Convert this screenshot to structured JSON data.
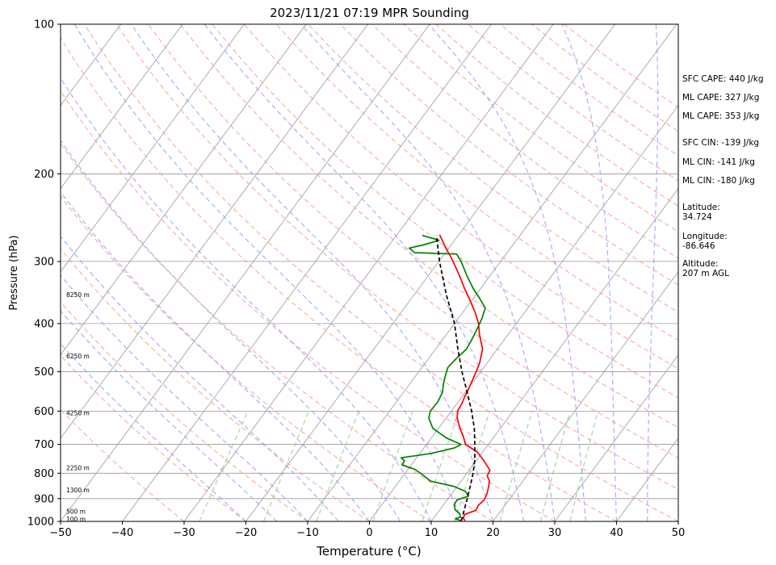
{
  "chart_data": {
    "type": "line",
    "chart_kind": "skew-t log-p sounding",
    "title": "2023/11/21 07:19 MPR Sounding",
    "xlabel": "Temperature (°C)",
    "ylabel": "Pressure (hPa)",
    "xlim": [
      -50,
      50
    ],
    "ylim": [
      1000,
      100
    ],
    "y_scale": "log",
    "grid": true,
    "x_ticks": [
      "−50",
      "−40",
      "−30",
      "−20",
      "−10",
      "0",
      "10",
      "20",
      "30",
      "40",
      "50"
    ],
    "y_ticks": [
      {
        "p": 1000,
        "label": "1000"
      },
      {
        "p": 900,
        "label": "900"
      },
      {
        "p": 800,
        "label": "800"
      },
      {
        "p": 700,
        "label": "700"
      },
      {
        "p": 600,
        "label": "600"
      },
      {
        "p": 500,
        "label": "500"
      },
      {
        "p": 400,
        "label": "400"
      },
      {
        "p": 300,
        "label": "300"
      },
      {
        "p": 200,
        "label": "200"
      },
      {
        "p": 100,
        "label": "100"
      }
    ],
    "height_labels": [
      {
        "p": 988,
        "label": "100 m"
      },
      {
        "p": 955,
        "label": "500 m"
      },
      {
        "p": 865,
        "label": "1300 m"
      },
      {
        "p": 780,
        "label": "2250 m"
      },
      {
        "p": 605,
        "label": "4250 m"
      },
      {
        "p": 465,
        "label": "6250 m"
      },
      {
        "p": 350,
        "label": "8250 m"
      }
    ],
    "series": [
      {
        "role": "temperature",
        "color": "#ff0000",
        "points": [
          [
            997,
            15.4
          ],
          [
            985,
            14.8
          ],
          [
            968,
            14.6
          ],
          [
            950,
            15.9
          ],
          [
            928,
            15.7
          ],
          [
            905,
            16.0
          ],
          [
            880,
            15.7
          ],
          [
            855,
            15.2
          ],
          [
            830,
            14.6
          ],
          [
            810,
            13.6
          ],
          [
            790,
            13.4
          ],
          [
            775,
            12.5
          ],
          [
            750,
            10.9
          ],
          [
            725,
            9.1
          ],
          [
            700,
            6.3
          ],
          [
            675,
            5.0
          ],
          [
            650,
            3.5
          ],
          [
            620,
            1.8
          ],
          [
            600,
            1.0
          ],
          [
            580,
            0.8
          ],
          [
            560,
            0.4
          ],
          [
            540,
            0.1
          ],
          [
            520,
            -0.3
          ],
          [
            500,
            -0.7
          ],
          [
            480,
            -1.2
          ],
          [
            450,
            -2.4
          ],
          [
            420,
            -4.7
          ],
          [
            400,
            -6.1
          ],
          [
            380,
            -8.0
          ],
          [
            360,
            -10.2
          ],
          [
            340,
            -12.6
          ],
          [
            320,
            -15.0
          ],
          [
            300,
            -17.7
          ],
          [
            290,
            -19.2
          ],
          [
            280,
            -20.8
          ],
          [
            265,
            -23.1
          ]
        ]
      },
      {
        "role": "dewpoint",
        "color": "#008000",
        "points": [
          [
            997,
            14.8
          ],
          [
            988,
            13.6
          ],
          [
            980,
            14.2
          ],
          [
            965,
            13.7
          ],
          [
            948,
            12.5
          ],
          [
            925,
            11.7
          ],
          [
            905,
            11.6
          ],
          [
            890,
            13.0
          ],
          [
            870,
            11.9
          ],
          [
            850,
            9.4
          ],
          [
            830,
            5.1
          ],
          [
            800,
            2.5
          ],
          [
            785,
            1.0
          ],
          [
            770,
            -1.5
          ],
          [
            755,
            -1.6
          ],
          [
            745,
            -2.5
          ],
          [
            730,
            1.8
          ],
          [
            712,
            4.9
          ],
          [
            700,
            5.6
          ],
          [
            680,
            2.5
          ],
          [
            650,
            -0.9
          ],
          [
            620,
            -2.8
          ],
          [
            600,
            -3.4
          ],
          [
            575,
            -3.3
          ],
          [
            550,
            -3.7
          ],
          [
            530,
            -4.5
          ],
          [
            510,
            -5.2
          ],
          [
            490,
            -5.8
          ],
          [
            470,
            -5.5
          ],
          [
            450,
            -5.0
          ],
          [
            430,
            -5.3
          ],
          [
            410,
            -5.7
          ],
          [
            390,
            -6.2
          ],
          [
            372,
            -6.9
          ],
          [
            355,
            -9.1
          ],
          [
            340,
            -11.2
          ],
          [
            320,
            -13.8
          ],
          [
            300,
            -16.4
          ],
          [
            290,
            -18.0
          ],
          [
            288,
            -25.0
          ],
          [
            282,
            -26.4
          ],
          [
            278,
            -24.5
          ],
          [
            272,
            -22.5
          ],
          [
            266,
            -25.8
          ]
        ]
      },
      {
        "role": "parcel-profile",
        "color": "#000000",
        "style": "dashed",
        "points": [
          [
            997,
            14.8
          ],
          [
            950,
            14.0
          ],
          [
            900,
            13.1
          ],
          [
            850,
            12.1
          ],
          [
            800,
            11.0
          ],
          [
            750,
            9.6
          ],
          [
            700,
            7.8
          ],
          [
            650,
            5.8
          ],
          [
            600,
            3.3
          ],
          [
            550,
            0.3
          ],
          [
            500,
            -3.0
          ],
          [
            450,
            -6.4
          ],
          [
            400,
            -10.0
          ],
          [
            350,
            -14.8
          ],
          [
            300,
            -19.9
          ],
          [
            266,
            -23.5
          ]
        ]
      }
    ]
  },
  "side_panel": [
    {
      "key": "sfc_cape",
      "text": "SFC CAPE: 440 J/kg"
    },
    {
      "key": "ml_cape_1",
      "text": "ML CAPE: 327 J/kg"
    },
    {
      "key": "ml_cape_2",
      "text": "ML CAPE: 353 J/kg"
    },
    {
      "key": "sfc_cin",
      "text": "SFC CIN: -139 J/kg"
    },
    {
      "key": "ml_cin_1",
      "text": "ML CIN: -141 J/kg"
    },
    {
      "key": "ml_cin_2",
      "text": "ML CIN: -180 J/kg"
    },
    {
      "key": "latitude",
      "text": "Latitude:\n34.724"
    },
    {
      "key": "longitude",
      "text": "Longitude:\n-86.646"
    },
    {
      "key": "altitude",
      "text": "Altitude:\n207 m AGL"
    }
  ],
  "colors": {
    "temperature": "#ff0000",
    "dewpoint": "#008000",
    "parcel": "#000000",
    "dry_adiabats": "#ff9999",
    "moist_adiabats": "#9999ff",
    "mixing_ratio": "#88cc88",
    "isotherms": "#999999"
  }
}
